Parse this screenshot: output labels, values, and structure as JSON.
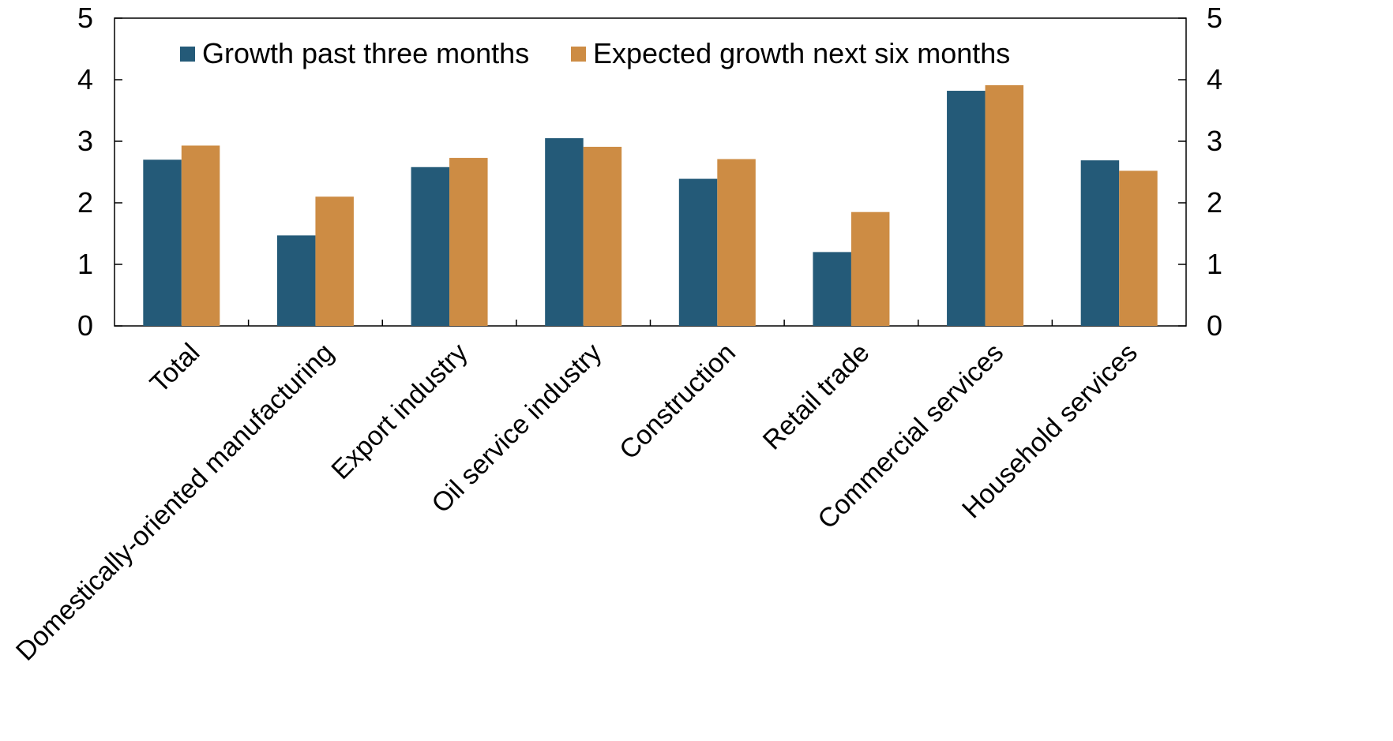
{
  "chart_data": {
    "type": "bar",
    "categories": [
      "Total",
      "Domestically-oriented manufacturing",
      "Export industry",
      "Oil service industry",
      "Construction",
      "Retail trade",
      "Commercial services",
      "Household services"
    ],
    "series": [
      {
        "name": "Growth past three months",
        "color": "#245A78",
        "values": [
          2.7,
          1.47,
          2.58,
          3.05,
          2.39,
          1.2,
          3.82,
          2.69
        ]
      },
      {
        "name": "Expected growth next six months",
        "color": "#CD8C44",
        "values": [
          2.93,
          2.1,
          2.73,
          2.91,
          2.71,
          1.85,
          3.91,
          2.52
        ]
      }
    ],
    "ylim": [
      0,
      5
    ],
    "yticks": [
      "0",
      "1",
      "2",
      "3",
      "4",
      "5"
    ],
    "y_axis_right": true,
    "grid": false,
    "legend_position": "top"
  }
}
